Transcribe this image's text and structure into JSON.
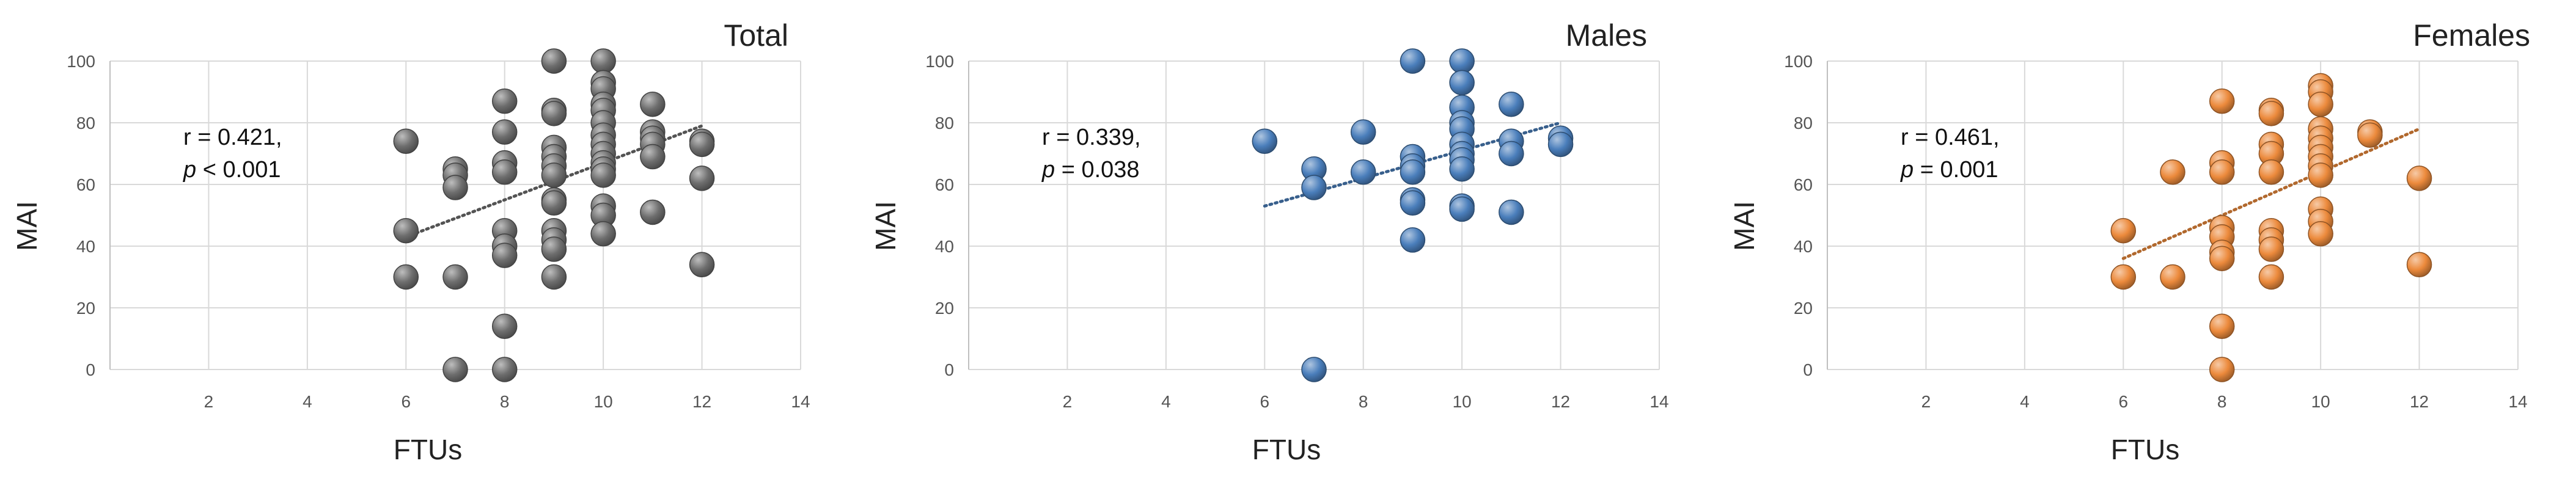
{
  "colors": {
    "total_point": "#6e6e6e",
    "males_point": "#4a7ebb",
    "females_point": "#ec8a3c",
    "grid": "#d9d9d9"
  },
  "chart_data": [
    {
      "type": "scatter",
      "title": "Total",
      "xlabel": "FTUs",
      "ylabel": "MAI",
      "xlim": [
        0,
        14
      ],
      "ylim": [
        0,
        100
      ],
      "xticks": [
        2,
        4,
        6,
        8,
        10,
        12,
        14
      ],
      "yticks": [
        0,
        20,
        40,
        60,
        80,
        100
      ],
      "grid": true,
      "color": "#6e6e6e",
      "annotation": {
        "r_text": "r = 0.421,",
        "p_symbol": "p",
        "p_rest": " < 0.001"
      },
      "trendline": {
        "x": [
          6,
          12
        ],
        "y": [
          43,
          79
        ]
      },
      "points": [
        {
          "x": 6,
          "y": 74
        },
        {
          "x": 6,
          "y": 45
        },
        {
          "x": 6,
          "y": 30
        },
        {
          "x": 7,
          "y": 65
        },
        {
          "x": 7,
          "y": 63
        },
        {
          "x": 7,
          "y": 59
        },
        {
          "x": 7,
          "y": 30
        },
        {
          "x": 7,
          "y": 0
        },
        {
          "x": 8,
          "y": 87
        },
        {
          "x": 8,
          "y": 77
        },
        {
          "x": 8,
          "y": 67
        },
        {
          "x": 8,
          "y": 64
        },
        {
          "x": 8,
          "y": 45
        },
        {
          "x": 8,
          "y": 40
        },
        {
          "x": 8,
          "y": 37
        },
        {
          "x": 8,
          "y": 14
        },
        {
          "x": 8,
          "y": 0
        },
        {
          "x": 9,
          "y": 100
        },
        {
          "x": 9,
          "y": 84
        },
        {
          "x": 9,
          "y": 83
        },
        {
          "x": 9,
          "y": 72
        },
        {
          "x": 9,
          "y": 69
        },
        {
          "x": 9,
          "y": 66
        },
        {
          "x": 9,
          "y": 63
        },
        {
          "x": 9,
          "y": 55
        },
        {
          "x": 9,
          "y": 54
        },
        {
          "x": 9,
          "y": 45
        },
        {
          "x": 9,
          "y": 42
        },
        {
          "x": 9,
          "y": 39
        },
        {
          "x": 9,
          "y": 30
        },
        {
          "x": 10,
          "y": 100
        },
        {
          "x": 10,
          "y": 93
        },
        {
          "x": 10,
          "y": 91
        },
        {
          "x": 10,
          "y": 86
        },
        {
          "x": 10,
          "y": 84
        },
        {
          "x": 10,
          "y": 80
        },
        {
          "x": 10,
          "y": 76
        },
        {
          "x": 10,
          "y": 73
        },
        {
          "x": 10,
          "y": 70
        },
        {
          "x": 10,
          "y": 67
        },
        {
          "x": 10,
          "y": 65
        },
        {
          "x": 10,
          "y": 63
        },
        {
          "x": 10,
          "y": 53
        },
        {
          "x": 10,
          "y": 50
        },
        {
          "x": 10,
          "y": 44
        },
        {
          "x": 11,
          "y": 86
        },
        {
          "x": 11,
          "y": 77
        },
        {
          "x": 11,
          "y": 75
        },
        {
          "x": 11,
          "y": 73
        },
        {
          "x": 11,
          "y": 69
        },
        {
          "x": 11,
          "y": 51
        },
        {
          "x": 12,
          "y": 74
        },
        {
          "x": 12,
          "y": 73
        },
        {
          "x": 12,
          "y": 62
        },
        {
          "x": 12,
          "y": 34
        }
      ]
    },
    {
      "type": "scatter",
      "title": "Males",
      "xlabel": "FTUs",
      "ylabel": "MAI",
      "xlim": [
        0,
        14
      ],
      "ylim": [
        0,
        100
      ],
      "xticks": [
        2,
        4,
        6,
        8,
        10,
        12,
        14
      ],
      "yticks": [
        0,
        20,
        40,
        60,
        80,
        100
      ],
      "grid": true,
      "color": "#4a7ebb",
      "annotation": {
        "r_text": "r = 0.339,",
        "p_symbol": "p",
        "p_rest": " = 0.038"
      },
      "trendline": {
        "x": [
          6,
          12
        ],
        "y": [
          53,
          80
        ]
      },
      "points": [
        {
          "x": 6,
          "y": 74
        },
        {
          "x": 7,
          "y": 65
        },
        {
          "x": 7,
          "y": 59
        },
        {
          "x": 7,
          "y": 0
        },
        {
          "x": 8,
          "y": 77
        },
        {
          "x": 8,
          "y": 64
        },
        {
          "x": 9,
          "y": 100
        },
        {
          "x": 9,
          "y": 69
        },
        {
          "x": 9,
          "y": 66
        },
        {
          "x": 9,
          "y": 64
        },
        {
          "x": 9,
          "y": 55
        },
        {
          "x": 9,
          "y": 54
        },
        {
          "x": 9,
          "y": 42
        },
        {
          "x": 10,
          "y": 100
        },
        {
          "x": 10,
          "y": 93
        },
        {
          "x": 10,
          "y": 85
        },
        {
          "x": 10,
          "y": 80
        },
        {
          "x": 10,
          "y": 78
        },
        {
          "x": 10,
          "y": 73
        },
        {
          "x": 10,
          "y": 70
        },
        {
          "x": 10,
          "y": 68
        },
        {
          "x": 10,
          "y": 65
        },
        {
          "x": 10,
          "y": 53
        },
        {
          "x": 10,
          "y": 52
        },
        {
          "x": 11,
          "y": 86
        },
        {
          "x": 11,
          "y": 74
        },
        {
          "x": 11,
          "y": 70
        },
        {
          "x": 11,
          "y": 51
        },
        {
          "x": 12,
          "y": 75
        },
        {
          "x": 12,
          "y": 73
        }
      ]
    },
    {
      "type": "scatter",
      "title": "Females",
      "xlabel": "FTUs",
      "ylabel": "MAI",
      "xlim": [
        0,
        14
      ],
      "ylim": [
        0,
        100
      ],
      "xticks": [
        2,
        4,
        6,
        8,
        10,
        12,
        14
      ],
      "yticks": [
        0,
        20,
        40,
        60,
        80,
        100
      ],
      "grid": true,
      "color": "#ec8a3c",
      "annotation": {
        "r_text": "r = 0.461,",
        "p_symbol": "p",
        "p_rest": " = 0.001"
      },
      "trendline": {
        "x": [
          6,
          12
        ],
        "y": [
          36,
          78
        ]
      },
      "points": [
        {
          "x": 6,
          "y": 45
        },
        {
          "x": 6,
          "y": 30
        },
        {
          "x": 7,
          "y": 64
        },
        {
          "x": 7,
          "y": 30
        },
        {
          "x": 8,
          "y": 87
        },
        {
          "x": 8,
          "y": 67
        },
        {
          "x": 8,
          "y": 64
        },
        {
          "x": 8,
          "y": 46
        },
        {
          "x": 8,
          "y": 43
        },
        {
          "x": 8,
          "y": 38
        },
        {
          "x": 8,
          "y": 36
        },
        {
          "x": 8,
          "y": 14
        },
        {
          "x": 8,
          "y": 0
        },
        {
          "x": 9,
          "y": 84
        },
        {
          "x": 9,
          "y": 83
        },
        {
          "x": 9,
          "y": 73
        },
        {
          "x": 9,
          "y": 70
        },
        {
          "x": 9,
          "y": 64
        },
        {
          "x": 9,
          "y": 45
        },
        {
          "x": 9,
          "y": 42
        },
        {
          "x": 9,
          "y": 39
        },
        {
          "x": 9,
          "y": 30
        },
        {
          "x": 10,
          "y": 92
        },
        {
          "x": 10,
          "y": 90
        },
        {
          "x": 10,
          "y": 86
        },
        {
          "x": 10,
          "y": 78
        },
        {
          "x": 10,
          "y": 75
        },
        {
          "x": 10,
          "y": 72
        },
        {
          "x": 10,
          "y": 69
        },
        {
          "x": 10,
          "y": 66
        },
        {
          "x": 10,
          "y": 63
        },
        {
          "x": 10,
          "y": 52
        },
        {
          "x": 10,
          "y": 48
        },
        {
          "x": 10,
          "y": 44
        },
        {
          "x": 11,
          "y": 77
        },
        {
          "x": 11,
          "y": 76
        },
        {
          "x": 12,
          "y": 62
        },
        {
          "x": 12,
          "y": 34
        }
      ]
    }
  ]
}
